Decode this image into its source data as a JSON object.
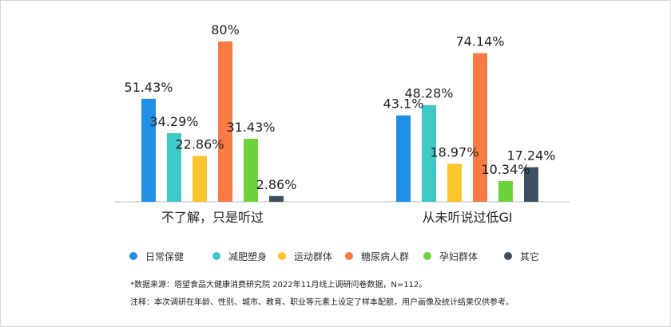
{
  "chart_data": {
    "type": "bar",
    "categories": [
      "不了解，只是听过",
      "从未听说过低GI"
    ],
    "series": [
      {
        "name": "日常保健",
        "color": "#1f8fe6",
        "values": [
          51.43,
          43.1
        ]
      },
      {
        "name": "减肥塑身",
        "color": "#3fc9c6",
        "values": [
          34.29,
          48.28
        ]
      },
      {
        "name": "运动群体",
        "color": "#fbc52e",
        "values": [
          22.86,
          18.97
        ]
      },
      {
        "name": "糖尿病人群",
        "color": "#fa7a43",
        "values": [
          80,
          74.14
        ]
      },
      {
        "name": "孕妇群体",
        "color": "#6cd43a",
        "values": [
          31.43,
          10.34
        ]
      },
      {
        "name": "其它",
        "color": "#3b5060",
        "values": [
          2.86,
          17.24
        ]
      }
    ],
    "value_labels": [
      [
        "51.43%",
        "34.29%",
        "22.86%",
        "80%",
        "31.43%",
        "2.86%"
      ],
      [
        "43.1%",
        "48.28%",
        "18.97%",
        "74.14%",
        "10.34%",
        "17.24%"
      ]
    ],
    "ylim": [
      0,
      80
    ],
    "grid": false,
    "legend": "bottom"
  },
  "notes": {
    "source": "*数据来源：塔望食品大健康消费研究院 2022年11月线上调研问卷数据，N=112。",
    "remark": "注释：本次调研在年龄、性别、城市、教育、职业等元素上设定了样本配额，用户画像及统计结果仅供参考。"
  }
}
